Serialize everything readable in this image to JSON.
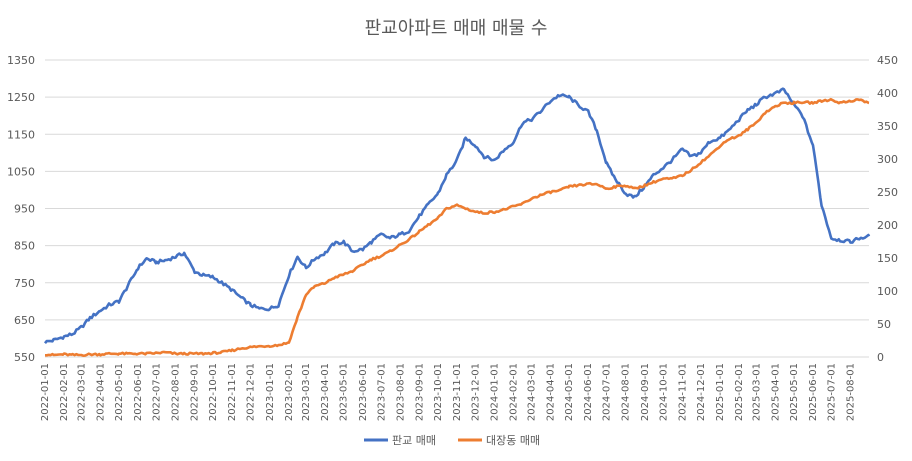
{
  "chart_data": {
    "type": "line",
    "title": "판교아파트 매매 매물 수",
    "xlabel": "",
    "ylabel": "",
    "grid": true,
    "legend_position": "bottom",
    "x_ticks": [
      "2022-01-01",
      "2022-02-01",
      "2022-03-01",
      "2022-04-01",
      "2022-05-01",
      "2022-06-01",
      "2022-07-01",
      "2022-08-01",
      "2022-09-01",
      "2022-10-01",
      "2022-11-01",
      "2022-12-01",
      "2023-01-01",
      "2023-02-01",
      "2023-03-01",
      "2023-04-01",
      "2023-05-01",
      "2023-06-01",
      "2023-07-01",
      "2023-08-01",
      "2023-09-01",
      "2023-10-01",
      "2023-11-01",
      "2023-12-01",
      "2024-01-01",
      "2024-02-01",
      "2024-03-01",
      "2024-04-01",
      "2024-05-01",
      "2024-06-01",
      "2024-07-01",
      "2024-08-01",
      "2024-09-01",
      "2024-10-01",
      "2024-11-01",
      "2024-12-01",
      "2025-01-01",
      "2025-02-01",
      "2025-03-01",
      "2025-04-01",
      "2025-05-01",
      "2025-06-01",
      "2025-07-01",
      "2025-08-01"
    ],
    "y_left": {
      "ticks": [
        550,
        650,
        750,
        850,
        950,
        1050,
        1150,
        1250,
        1350
      ],
      "range": [
        550,
        1350
      ]
    },
    "y_right": {
      "ticks": [
        0,
        50,
        100,
        150,
        200,
        250,
        300,
        350,
        400,
        450
      ],
      "range": [
        0,
        450
      ]
    },
    "series": [
      {
        "name": "판교 매매",
        "axis": "left",
        "color": "#4472c4",
        "x": [
          "2022-01-01",
          "2022-01-15",
          "2022-02-01",
          "2022-02-15",
          "2022-03-01",
          "2022-03-15",
          "2022-04-01",
          "2022-04-15",
          "2022-05-01",
          "2022-05-15",
          "2022-06-01",
          "2022-06-15",
          "2022-07-01",
          "2022-07-15",
          "2022-08-01",
          "2022-08-15",
          "2022-09-01",
          "2022-09-15",
          "2022-10-01",
          "2022-10-15",
          "2022-11-01",
          "2022-11-15",
          "2022-12-01",
          "2022-12-15",
          "2023-01-01",
          "2023-01-15",
          "2023-02-01",
          "2023-02-15",
          "2023-03-01",
          "2023-03-15",
          "2023-04-01",
          "2023-04-15",
          "2023-05-01",
          "2023-05-15",
          "2023-06-01",
          "2023-06-15",
          "2023-07-01",
          "2023-07-15",
          "2023-08-01",
          "2023-08-15",
          "2023-09-01",
          "2023-09-15",
          "2023-10-01",
          "2023-10-15",
          "2023-11-01",
          "2023-11-15",
          "2023-12-01",
          "2023-12-15",
          "2024-01-01",
          "2024-01-15",
          "2024-02-01",
          "2024-02-15",
          "2024-03-01",
          "2024-03-15",
          "2024-04-01",
          "2024-04-15",
          "2024-05-01",
          "2024-05-15",
          "2024-06-01",
          "2024-06-15",
          "2024-07-01",
          "2024-07-15",
          "2024-08-01",
          "2024-08-15",
          "2024-09-01",
          "2024-09-15",
          "2024-10-01",
          "2024-10-15",
          "2024-11-01",
          "2024-11-15",
          "2024-12-01",
          "2024-12-15",
          "2025-01-01",
          "2025-01-15",
          "2025-02-01",
          "2025-02-15",
          "2025-03-01",
          "2025-03-15",
          "2025-04-01",
          "2025-04-15",
          "2025-05-01",
          "2025-05-15",
          "2025-06-01",
          "2025-06-15",
          "2025-07-01",
          "2025-07-15",
          "2025-08-01",
          "2025-08-15",
          "2025-08-31"
        ],
        "values": [
          590,
          595,
          605,
          612,
          630,
          655,
          675,
          690,
          700,
          740,
          790,
          815,
          805,
          810,
          820,
          830,
          780,
          770,
          765,
          750,
          730,
          710,
          690,
          680,
          680,
          690,
          770,
          820,
          790,
          815,
          830,
          855,
          860,
          835,
          840,
          860,
          880,
          870,
          880,
          890,
          930,
          960,
          990,
          1040,
          1080,
          1140,
          1120,
          1090,
          1080,
          1105,
          1130,
          1180,
          1190,
          1210,
          1240,
          1255,
          1250,
          1230,
          1210,
          1160,
          1070,
          1030,
          990,
          980,
          1010,
          1040,
          1060,
          1080,
          1110,
          1090,
          1100,
          1130,
          1140,
          1160,
          1190,
          1215,
          1230,
          1250,
          1260,
          1270,
          1230,
          1200,
          1120,
          960,
          870,
          865,
          860,
          870,
          875
        ]
      },
      {
        "name": "대장동 매매",
        "axis": "right",
        "color": "#ed7d31",
        "x": [
          "2022-01-01",
          "2022-01-15",
          "2022-02-01",
          "2022-02-15",
          "2022-03-01",
          "2022-03-15",
          "2022-04-01",
          "2022-04-15",
          "2022-05-01",
          "2022-05-15",
          "2022-06-01",
          "2022-06-15",
          "2022-07-01",
          "2022-07-15",
          "2022-08-01",
          "2022-08-15",
          "2022-09-01",
          "2022-09-15",
          "2022-10-01",
          "2022-10-15",
          "2022-11-01",
          "2022-11-15",
          "2022-12-01",
          "2022-12-15",
          "2023-01-01",
          "2023-01-15",
          "2023-02-01",
          "2023-02-15",
          "2023-03-01",
          "2023-03-15",
          "2023-04-01",
          "2023-04-15",
          "2023-05-01",
          "2023-05-15",
          "2023-06-01",
          "2023-06-15",
          "2023-07-01",
          "2023-07-15",
          "2023-08-01",
          "2023-08-15",
          "2023-09-01",
          "2023-09-15",
          "2023-10-01",
          "2023-10-15",
          "2023-11-01",
          "2023-11-15",
          "2023-12-01",
          "2023-12-15",
          "2024-01-01",
          "2024-01-15",
          "2024-02-01",
          "2024-02-15",
          "2024-03-01",
          "2024-03-15",
          "2024-04-01",
          "2024-04-15",
          "2024-05-01",
          "2024-05-15",
          "2024-06-01",
          "2024-06-15",
          "2024-07-01",
          "2024-07-15",
          "2024-08-01",
          "2024-08-15",
          "2024-09-01",
          "2024-09-15",
          "2024-10-01",
          "2024-10-15",
          "2024-11-01",
          "2024-11-15",
          "2024-12-01",
          "2024-12-15",
          "2025-01-01",
          "2025-01-15",
          "2025-02-01",
          "2025-02-15",
          "2025-03-01",
          "2025-03-15",
          "2025-04-01",
          "2025-04-15",
          "2025-05-01",
          "2025-05-15",
          "2025-06-01",
          "2025-06-15",
          "2025-07-01",
          "2025-07-15",
          "2025-08-01",
          "2025-08-15",
          "2025-08-31"
        ],
        "values": [
          4,
          3,
          4,
          3,
          3,
          4,
          4,
          5,
          5,
          5,
          5,
          5,
          6,
          7,
          5,
          5,
          5,
          5,
          6,
          7,
          10,
          13,
          15,
          16,
          17,
          18,
          22,
          60,
          95,
          107,
          112,
          120,
          125,
          130,
          140,
          148,
          153,
          160,
          170,
          178,
          190,
          200,
          210,
          225,
          230,
          225,
          220,
          218,
          220,
          223,
          228,
          232,
          240,
          245,
          250,
          252,
          258,
          260,
          262,
          262,
          255,
          258,
          260,
          255,
          260,
          265,
          270,
          270,
          275,
          283,
          295,
          305,
          320,
          330,
          335,
          345,
          355,
          370,
          380,
          385,
          385,
          386,
          385,
          388,
          390,
          385,
          388,
          390,
          385
        ]
      }
    ]
  }
}
